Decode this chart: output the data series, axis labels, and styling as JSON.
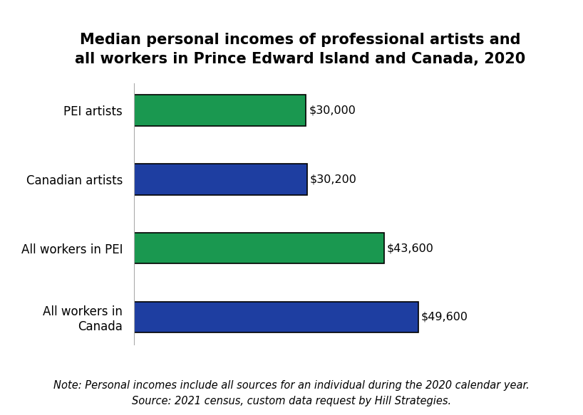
{
  "title": "Median personal incomes of professional artists and\nall workers in Prince Edward Island and Canada, 2020",
  "categories": [
    "All workers in\nCanada",
    "All workers in PEI",
    "Canadian artists",
    "PEI artists"
  ],
  "values": [
    49600,
    43600,
    30200,
    30000
  ],
  "colors": [
    "#1e3ea1",
    "#1a9850",
    "#1e3ea1",
    "#1a9850"
  ],
  "labels": [
    "$49,600",
    "$43,600",
    "$30,200",
    "$30,000"
  ],
  "note_line1": "Note: Personal incomes include all sources for an individual during the 2020 calendar year.",
  "note_line2": "Source: 2021 census, custom data request by Hill Strategies.",
  "background_color": "#ffffff",
  "bar_edge_color": "#000000",
  "title_fontsize": 15,
  "label_fontsize": 11.5,
  "note_fontsize": 10.5,
  "category_fontsize": 12,
  "xlim": [
    0,
    58000
  ],
  "bar_height": 0.45
}
